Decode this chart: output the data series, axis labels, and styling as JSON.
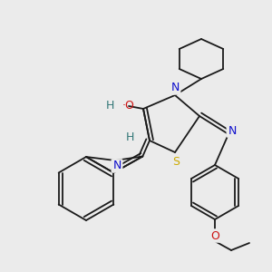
{
  "bg_color": "#ebebeb",
  "bond_color": "#1a1a1a",
  "figsize": [
    3.0,
    3.0
  ],
  "dpi": 100,
  "lw": 1.3,
  "atom_colors": {
    "N": "#1010cc",
    "O": "#cc1111",
    "S": "#ccaa00",
    "H": "#337777",
    "C": "#1a1a1a"
  }
}
